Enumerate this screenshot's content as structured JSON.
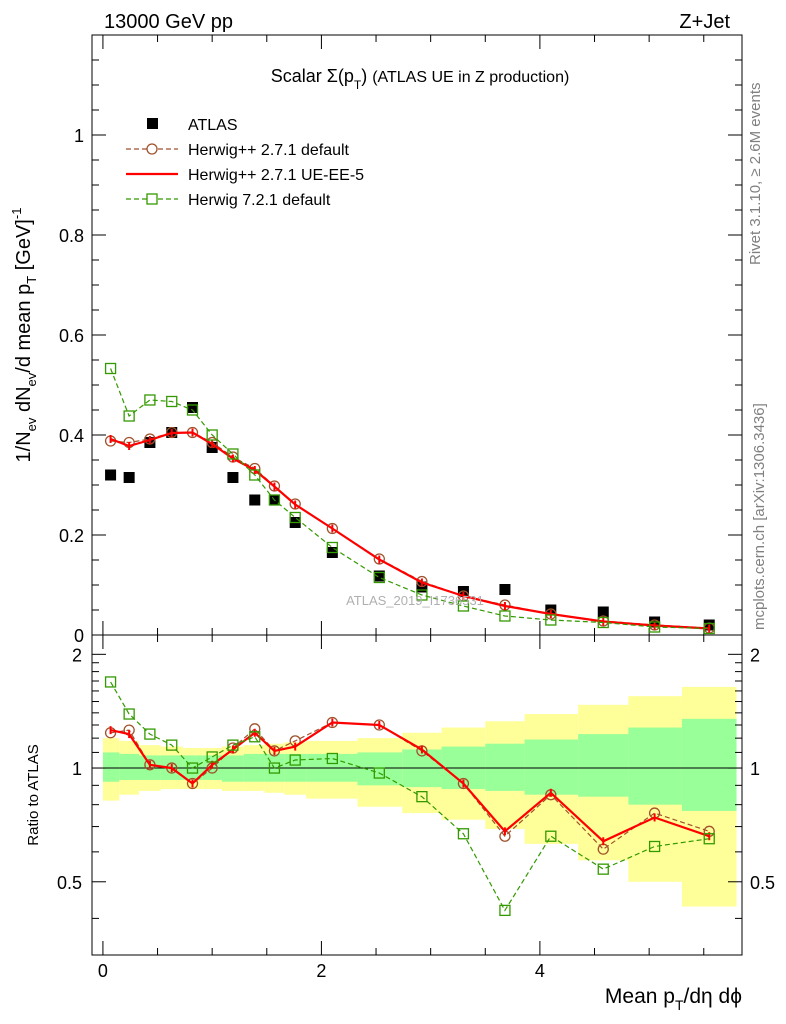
{
  "header": {
    "left": "13000 GeV pp",
    "right": "Z+Jet"
  },
  "side_labels": {
    "rivet": "Rivet 3.1.10, ≥ 2.6M events",
    "mcplots": "mcplots.cern.ch [arXiv:1306.3436]"
  },
  "watermark": "ATLAS_2019_I1736531",
  "chart_data": [
    {
      "type": "line",
      "title": "Scalar Σ(pT) (ATLAS UE in Z production)",
      "ylabel": "1/N_ev dN_ev/d mean p_T [GeV]^-1",
      "xlim": [
        -0.1,
        5.85
      ],
      "ylim": [
        0,
        1.2
      ],
      "y_ticks": [
        "0",
        "0.2",
        "0.4",
        "0.6",
        "0.8",
        "1"
      ],
      "legend_position": "top-left",
      "series": [
        {
          "name": "ATLAS",
          "style": "data",
          "color": "#000000",
          "x": [
            0.07,
            0.24,
            0.43,
            0.63,
            0.82,
            1.0,
            1.19,
            1.39,
            1.57,
            1.76,
            2.1,
            2.53,
            2.92,
            3.3,
            3.68,
            4.1,
            4.58,
            5.05,
            5.55
          ],
          "y": [
            0.32,
            0.315,
            0.385,
            0.405,
            0.455,
            0.375,
            0.315,
            0.27,
            0.27,
            0.225,
            0.165,
            0.118,
            0.096,
            0.087,
            0.091,
            0.05,
            0.046,
            0.026,
            0.02
          ]
        },
        {
          "name": "Herwig++ 2.7.1 default",
          "style": "circle-dashed",
          "color": "#a0522d",
          "x": [
            0.07,
            0.24,
            0.43,
            0.63,
            0.82,
            1.0,
            1.19,
            1.39,
            1.57,
            1.76,
            2.1,
            2.53,
            2.92,
            3.3,
            3.68,
            4.1,
            4.58,
            5.05,
            5.55
          ],
          "y": [
            0.388,
            0.385,
            0.392,
            0.405,
            0.405,
            0.385,
            0.356,
            0.333,
            0.298,
            0.262,
            0.213,
            0.152,
            0.107,
            0.078,
            0.06,
            0.042,
            0.028,
            0.02,
            0.014
          ]
        },
        {
          "name": "Herwig++ 2.7.1 UE-EE-5",
          "style": "solid",
          "color": "#ff0000",
          "x": [
            0.07,
            0.24,
            0.43,
            0.63,
            0.82,
            1.0,
            1.19,
            1.39,
            1.57,
            1.76,
            2.1,
            2.53,
            2.92,
            3.3,
            3.68,
            4.1,
            4.58,
            5.05,
            5.55
          ],
          "y": [
            0.392,
            0.378,
            0.39,
            0.404,
            0.405,
            0.382,
            0.353,
            0.33,
            0.297,
            0.261,
            0.213,
            0.151,
            0.105,
            0.078,
            0.058,
            0.042,
            0.027,
            0.019,
            0.013
          ]
        },
        {
          "name": "Herwig 7.2.1 default",
          "style": "square-dashed",
          "color": "#339900",
          "x": [
            0.07,
            0.24,
            0.43,
            0.63,
            0.82,
            1.0,
            1.19,
            1.39,
            1.57,
            1.76,
            2.1,
            2.53,
            2.92,
            3.3,
            3.68,
            4.1,
            4.58,
            5.05,
            5.55
          ],
          "y": [
            0.533,
            0.438,
            0.47,
            0.467,
            0.45,
            0.4,
            0.362,
            0.32,
            0.27,
            0.235,
            0.175,
            0.115,
            0.08,
            0.058,
            0.038,
            0.03,
            0.025,
            0.016,
            0.013
          ]
        }
      ]
    },
    {
      "type": "line",
      "ylabel": "Ratio to ATLAS",
      "xlabel": "Mean pT/dη dϕ",
      "xlim": [
        -0.1,
        5.85
      ],
      "ylim": [
        0.32,
        2.25
      ],
      "y_ticks": [
        "0.5",
        "1",
        "2"
      ],
      "x_ticks": [
        "0",
        "2",
        "4"
      ],
      "bin_edges": [
        0.0,
        0.15,
        0.33,
        0.53,
        0.73,
        0.91,
        1.09,
        1.29,
        1.48,
        1.66,
        1.86,
        2.33,
        2.74,
        3.1,
        3.5,
        3.86,
        4.35,
        4.81,
        5.3,
        5.8
      ],
      "uncertainty_bands": {
        "stat": {
          "color": "#99ff99",
          "lo": [
            0.92,
            0.93,
            0.93,
            0.93,
            0.93,
            0.93,
            0.92,
            0.92,
            0.92,
            0.92,
            0.92,
            0.9,
            0.89,
            0.88,
            0.87,
            0.85,
            0.84,
            0.8,
            0.77
          ],
          "hi": [
            1.1,
            1.09,
            1.08,
            1.08,
            1.08,
            1.08,
            1.08,
            1.09,
            1.09,
            1.09,
            1.09,
            1.1,
            1.12,
            1.14,
            1.16,
            1.19,
            1.23,
            1.28,
            1.35
          ]
        },
        "total": {
          "color": "#ffff99",
          "lo": [
            0.82,
            0.85,
            0.87,
            0.88,
            0.88,
            0.88,
            0.87,
            0.87,
            0.86,
            0.85,
            0.83,
            0.79,
            0.76,
            0.73,
            0.69,
            0.63,
            0.57,
            0.5,
            0.43
          ],
          "hi": [
            1.2,
            1.18,
            1.15,
            1.14,
            1.13,
            1.13,
            1.14,
            1.15,
            1.16,
            1.17,
            1.18,
            1.2,
            1.24,
            1.28,
            1.33,
            1.39,
            1.47,
            1.55,
            1.64
          ]
        }
      },
      "series": [
        {
          "name": "Herwig++ 2.7.1 default",
          "style": "circle-dashed",
          "color": "#a0522d",
          "x": [
            0.07,
            0.24,
            0.43,
            0.63,
            0.82,
            1.0,
            1.19,
            1.39,
            1.57,
            1.76,
            2.1,
            2.53,
            2.92,
            3.3,
            3.68,
            4.1,
            4.58,
            5.05,
            5.55
          ],
          "y": [
            1.24,
            1.26,
            1.02,
            1.0,
            0.91,
            1.0,
            1.13,
            1.27,
            1.11,
            1.18,
            1.32,
            1.3,
            1.11,
            0.91,
            0.66,
            0.85,
            0.61,
            0.76,
            0.68
          ]
        },
        {
          "name": "Herwig++ 2.7.1 UE-EE-5",
          "style": "solid",
          "color": "#ff0000",
          "x": [
            0.07,
            0.24,
            0.43,
            0.63,
            0.82,
            1.0,
            1.19,
            1.39,
            1.57,
            1.76,
            2.1,
            2.53,
            2.92,
            3.3,
            3.68,
            4.1,
            4.58,
            5.05,
            5.55
          ],
          "y": [
            1.26,
            1.23,
            1.02,
            1.0,
            0.91,
            1.02,
            1.12,
            1.24,
            1.11,
            1.14,
            1.32,
            1.3,
            1.12,
            0.91,
            0.68,
            0.86,
            0.64,
            0.74,
            0.66
          ]
        },
        {
          "name": "Herwig 7.2.1 default",
          "style": "square-dashed",
          "color": "#339900",
          "x": [
            0.07,
            0.24,
            0.43,
            0.63,
            0.82,
            1.0,
            1.19,
            1.39,
            1.57,
            1.76,
            2.1,
            2.53,
            2.92,
            3.3,
            3.68,
            4.1,
            4.58,
            5.05,
            5.55
          ],
          "y": [
            1.69,
            1.39,
            1.23,
            1.15,
            1.0,
            1.07,
            1.15,
            1.21,
            1.0,
            1.05,
            1.06,
            0.97,
            0.84,
            0.67,
            0.42,
            0.66,
            0.54,
            0.62,
            0.65
          ]
        }
      ]
    }
  ]
}
